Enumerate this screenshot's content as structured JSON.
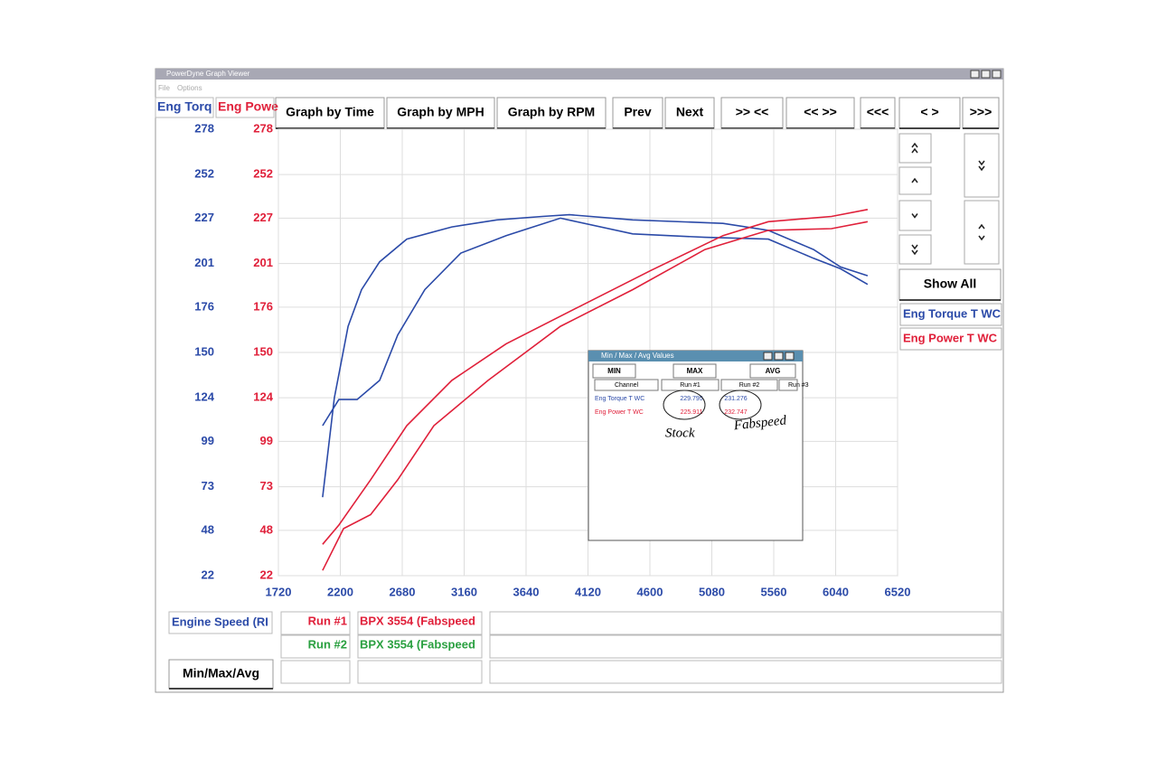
{
  "window": {
    "title": "PowerDyne Graph Viewer",
    "menu": [
      "File",
      "Options"
    ]
  },
  "toolbar": [
    "Graph by Time",
    "Graph by MPH",
    "Graph by RPM",
    "Prev",
    "Next",
    ">> <<",
    "<< >>",
    "<<<",
    "<    >",
    ">>>"
  ],
  "show_all": "Show All",
  "chart_data": {
    "type": "line",
    "x_label": "Engine Speed (RI",
    "xlim": [
      1720,
      6520
    ],
    "xticks": [
      1720,
      2200,
      2680,
      3160,
      3640,
      4120,
      4600,
      5080,
      5560,
      6040,
      6520
    ],
    "y_label": "Eng Torq",
    "y2_label": "Eng Powe",
    "ylim": [
      22,
      278
    ],
    "yticks": [
      22,
      48,
      73,
      99,
      124,
      150,
      176,
      201,
      227,
      252,
      278
    ],
    "y2lim": [
      22,
      278
    ],
    "y2ticks": [
      22,
      48,
      73,
      99,
      124,
      150,
      176,
      201,
      227,
      252,
      278
    ],
    "grid": true,
    "legend": [
      {
        "name": "Eng Torque T WC",
        "color": "#2b4aa8"
      },
      {
        "name": "Eng Power T WC",
        "color": "#e0203a"
      }
    ],
    "series": [
      {
        "color": "#2b4aa8",
        "x": [
          2063,
          2154,
          2260,
          2365,
          2505,
          2715,
          3065,
          3415,
          3766,
          3976,
          4467,
          5167,
          5518,
          5868,
          6078,
          6288
        ],
        "values": [
          67,
          124,
          165,
          186,
          202,
          215,
          222,
          226,
          228,
          229,
          226,
          224,
          220,
          209,
          199,
          194
        ]
      },
      {
        "color": "#2b4aa8",
        "x": [
          2063,
          2189,
          2330,
          2505,
          2645,
          2855,
          3135,
          3486,
          3906,
          4467,
          5027,
          5518,
          5868,
          6078,
          6288
        ],
        "values": [
          108,
          123,
          123,
          134,
          160,
          186,
          207,
          217,
          227,
          218,
          216,
          215,
          204,
          198,
          189
        ]
      },
      {
        "color": "#e0203a",
        "axis": "y2",
        "x": [
          2063,
          2189,
          2435,
          2715,
          3065,
          3486,
          4046,
          4607,
          5167,
          5518,
          6008,
          6288
        ],
        "values": [
          40,
          51,
          77,
          108,
          134,
          155,
          176,
          197,
          217,
          225,
          228,
          232
        ]
      },
      {
        "color": "#e0203a",
        "axis": "y2",
        "x": [
          2063,
          2225,
          2435,
          2645,
          2925,
          3346,
          3906,
          4467,
          5027,
          5518,
          6008,
          6288
        ],
        "values": [
          25,
          49,
          57,
          77,
          108,
          134,
          165,
          186,
          209,
          220,
          221,
          225
        ]
      }
    ]
  },
  "runs": [
    {
      "label": "Run #1",
      "description": "BPX 3554  (Fabspeed",
      "color": "#e0203a"
    },
    {
      "label": "Run #2",
      "description": "BPX 3554  (Fabspeed",
      "color": "#2aa040"
    }
  ],
  "min_max_button": "Min/Max/Avg",
  "popup": {
    "title": "Min / Max / Avg Values",
    "tabs": [
      "MIN",
      "MAX",
      "AVG"
    ],
    "columns": [
      "Channel",
      "Run #1",
      "Run #2",
      "Run #3"
    ],
    "rows": [
      [
        "Eng Torque T WC",
        "229.795",
        "231.276"
      ],
      [
        "Eng Power T WC",
        "225.911",
        "232.747"
      ]
    ],
    "notes": [
      "Stock",
      "Fabspeed"
    ]
  }
}
